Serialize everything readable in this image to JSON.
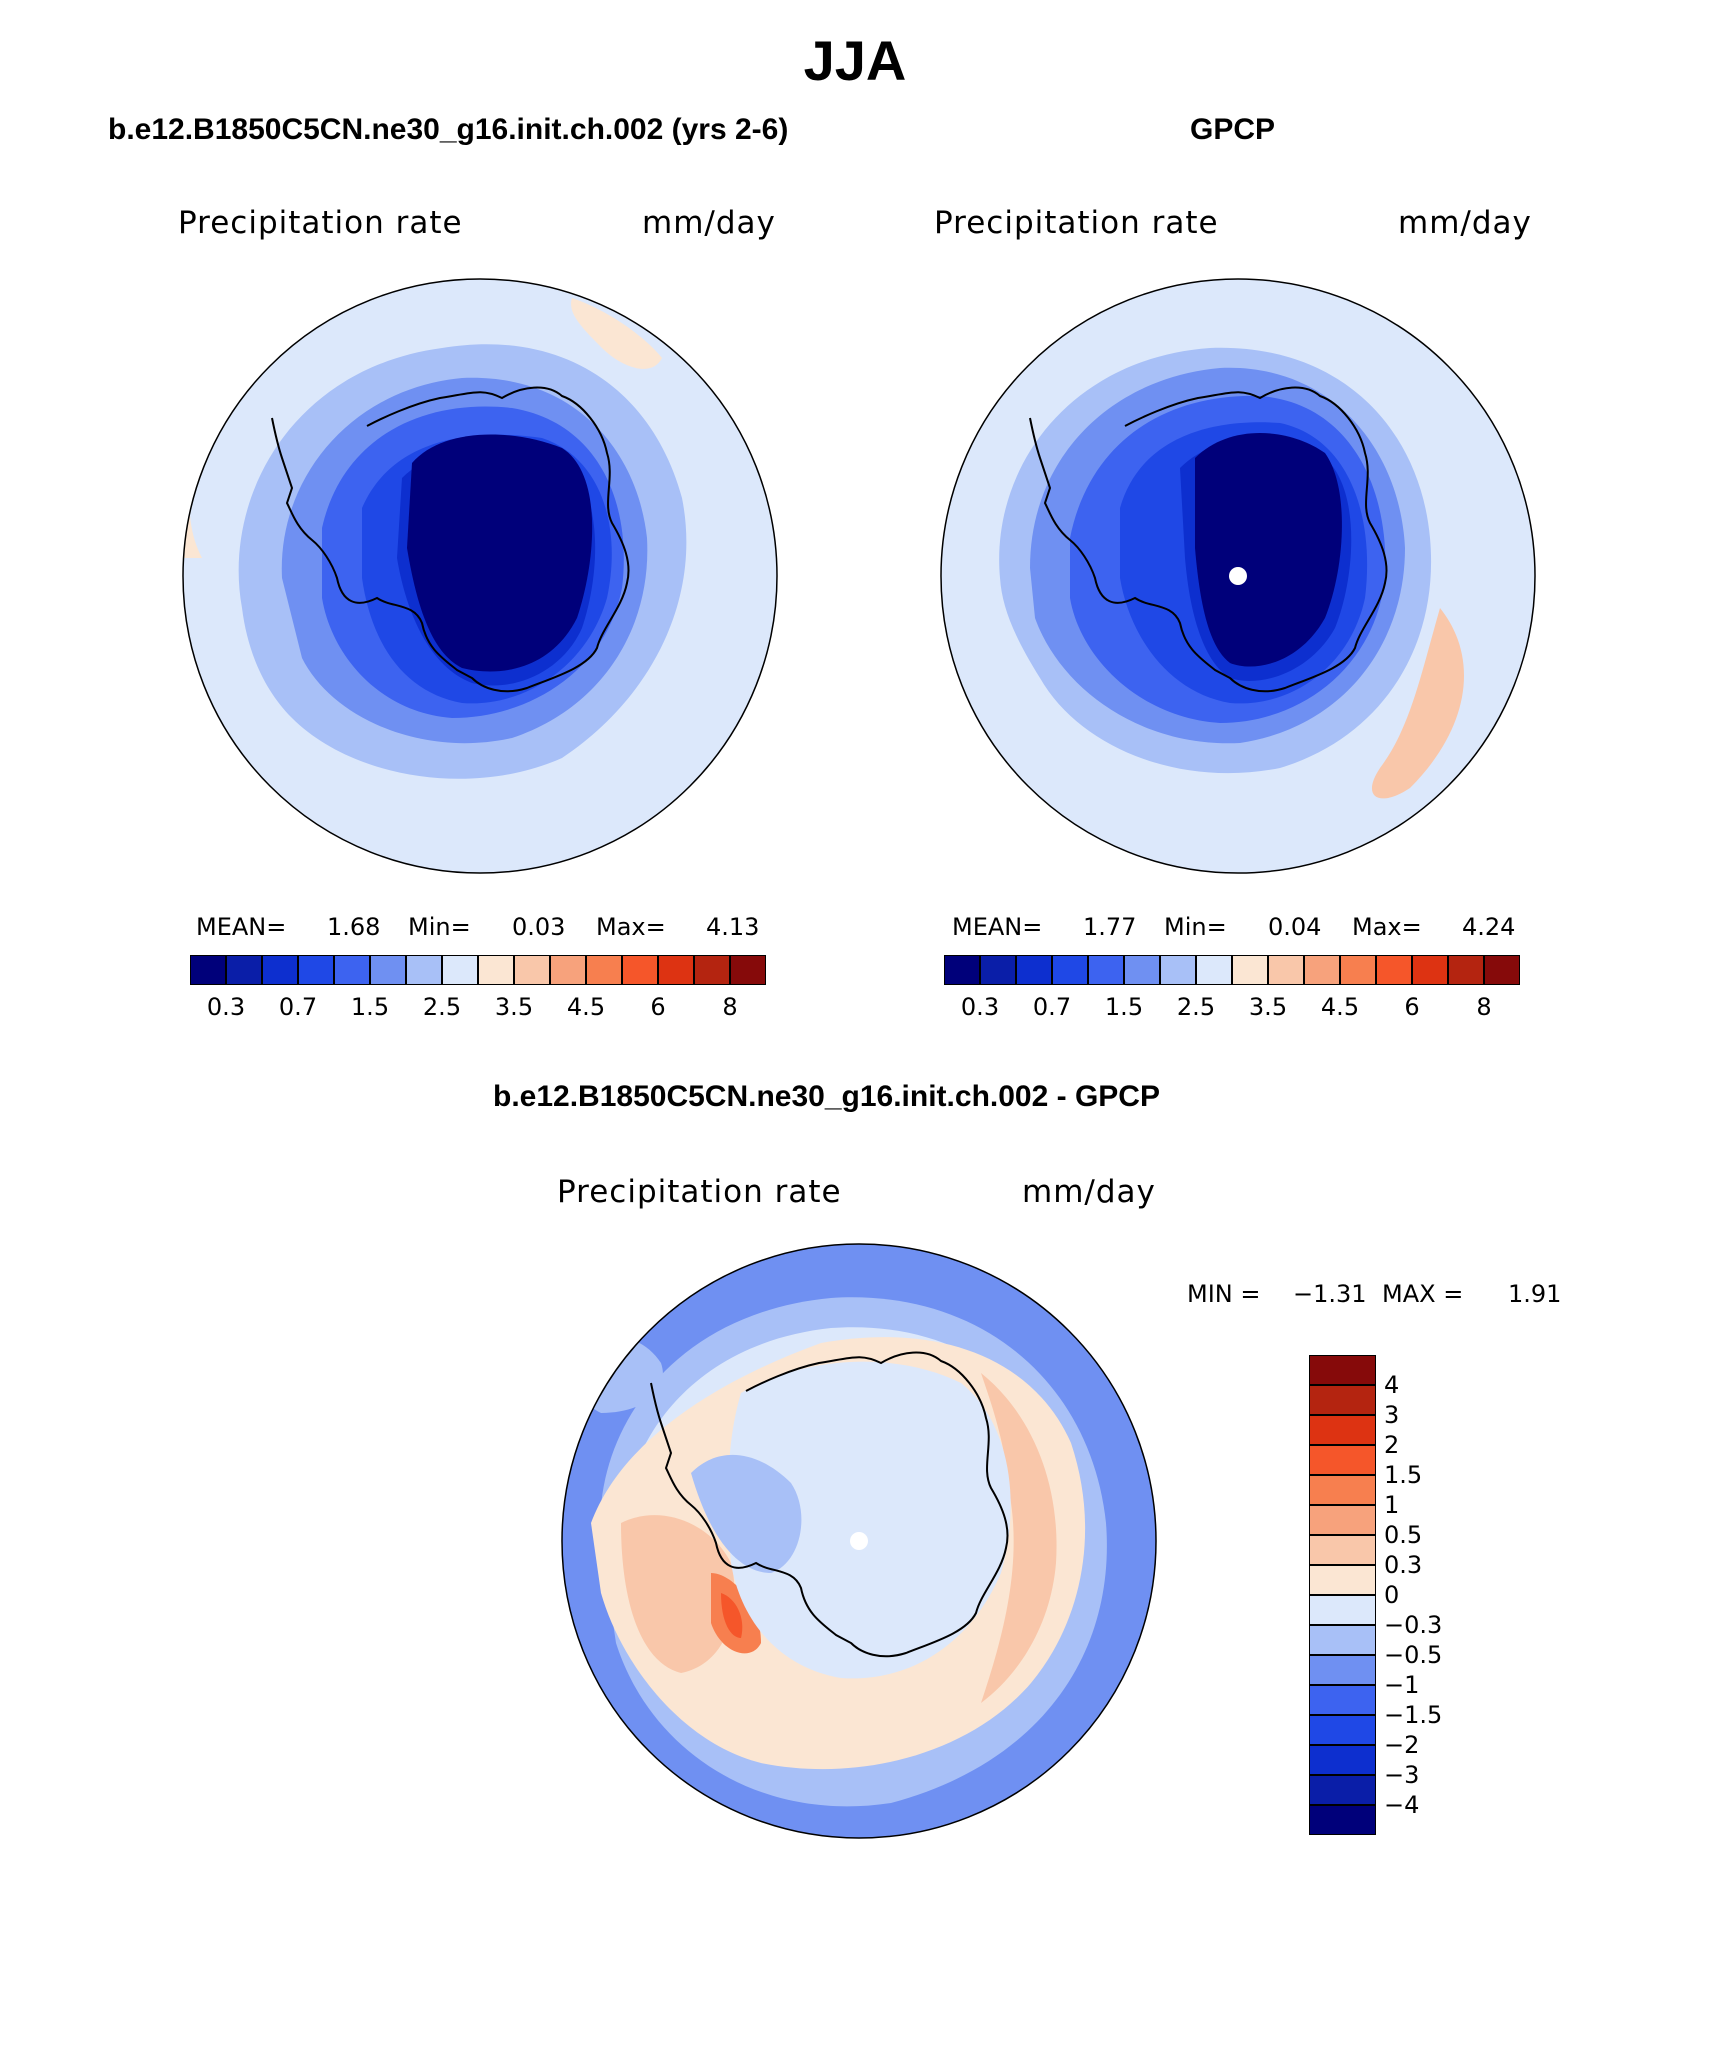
{
  "figure": {
    "title": "JJA"
  },
  "panels": {
    "model": {
      "title": "b.e12.B1850C5CN.ne30_g16.init.ch.002 (yrs 2-6)",
      "variable": "Precipitation rate",
      "units": "mm/day",
      "stats": {
        "mean_label": "MEAN=",
        "mean": "1.68",
        "min_label": "Min=",
        "min": "0.03",
        "max_label": "Max=",
        "max": "4.13"
      }
    },
    "obs": {
      "title": "GPCP",
      "variable": "Precipitation rate",
      "units": "mm/day",
      "stats": {
        "mean_label": "MEAN=",
        "mean": "1.77",
        "min_label": "Min=",
        "min": "0.04",
        "max_label": "Max=",
        "max": "4.24"
      }
    },
    "diff": {
      "title": "b.e12.B1850C5CN.ne30_g16.init.ch.002 - GPCP",
      "variable": "Precipitation rate",
      "units": "mm/day",
      "stats": {
        "min_label": "MIN =",
        "min": "−1.31",
        "max_label": "MAX =",
        "max": "1.91"
      }
    }
  },
  "colorbars": {
    "abs": {
      "colors": [
        "#00007a",
        "#0a1ea8",
        "#0d2fcf",
        "#1f48e6",
        "#3d63f0",
        "#6f90f2",
        "#a8c0f7",
        "#dce8fb",
        "#fbe6d3",
        "#f9c7aa",
        "#f7a27c",
        "#f77f4f",
        "#f5562a",
        "#dd3312",
        "#b42410",
        "#860a0a"
      ],
      "tick_labels": [
        "0.3",
        "0.7",
        "1.5",
        "2.5",
        "3.5",
        "4.5",
        "6",
        "8"
      ]
    },
    "diff": {
      "colors": [
        "#860a0a",
        "#b42410",
        "#dd3312",
        "#f5562a",
        "#f77f4f",
        "#f7a27c",
        "#f9c7aa",
        "#fbe6d3",
        "#dce8fb",
        "#a8c0f7",
        "#6f90f2",
        "#3d63f0",
        "#1f48e6",
        "#0d2fcf",
        "#0a1ea8",
        "#00007a"
      ],
      "tick_labels": [
        "4",
        "3",
        "2",
        "1.5",
        "1",
        "0.5",
        "0.3",
        "0",
        "−0.3",
        "−0.5",
        "−1",
        "−1.5",
        "−2",
        "−3",
        "−4"
      ]
    }
  }
}
